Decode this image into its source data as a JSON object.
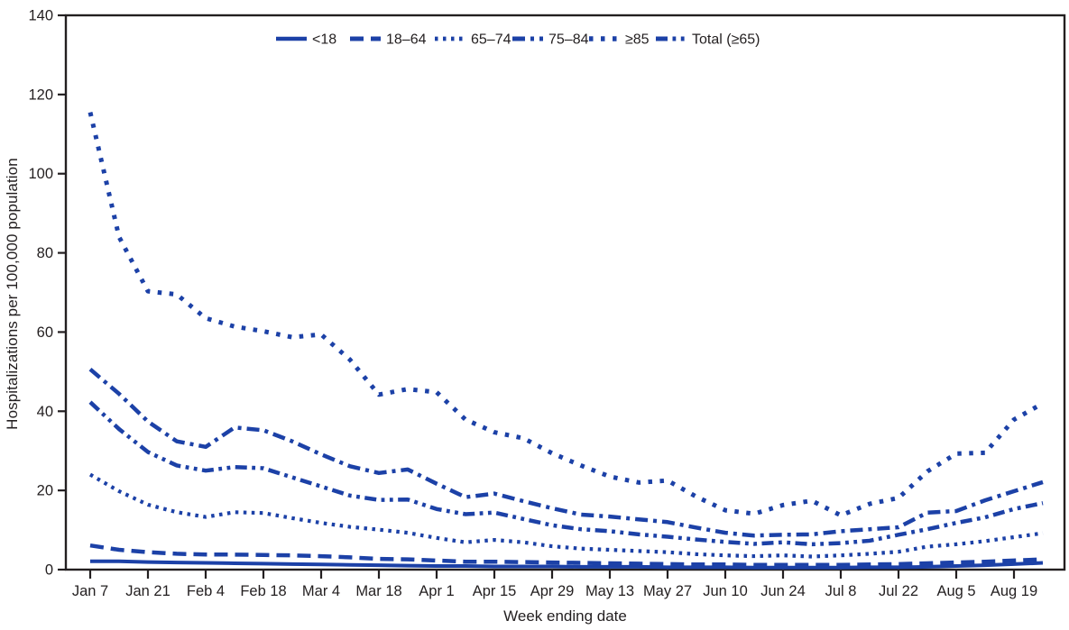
{
  "figure": {
    "y_axis_label": "Hospitalizations per 100,000 population",
    "x_axis_label": "Week ending date",
    "line_color": "#1c41a7",
    "axis_color": "#231f20"
  },
  "chart_data": {
    "type": "line",
    "title": "",
    "xlabel": "Week ending date",
    "ylabel": "Hospitalizations per 100,000 population",
    "ylim": [
      0,
      140
    ],
    "y_ticks": [
      0,
      20,
      40,
      60,
      80,
      100,
      120,
      140
    ],
    "grid": false,
    "legend_position": "top-center",
    "x": [
      "Jan 7",
      "Jan 14",
      "Jan 21",
      "Jan 28",
      "Feb 4",
      "Feb 11",
      "Feb 18",
      "Feb 25",
      "Mar 4",
      "Mar 11",
      "Mar 18",
      "Mar 25",
      "Apr 1",
      "Apr 8",
      "Apr 15",
      "Apr 22",
      "Apr 29",
      "May 6",
      "May 13",
      "May 20",
      "May 27",
      "Jun 3",
      "Jun 10",
      "Jun 17",
      "Jun 24",
      "Jul 1",
      "Jul 8",
      "Jul 15",
      "Jul 22",
      "Jul 29",
      "Aug 5",
      "Aug 12",
      "Aug 19",
      "Aug 26"
    ],
    "x_tick_labels": [
      "Jan 7",
      "Jan 21",
      "Feb 4",
      "Feb 18",
      "Mar 4",
      "Mar 18",
      "Apr 1",
      "Apr 15",
      "Apr 29",
      "May 13",
      "May 27",
      "Jun 10",
      "Jun 24",
      "Jul 8",
      "Jul 22",
      "Aug 5",
      "Aug 19"
    ],
    "series": [
      {
        "name": "<18",
        "style": "solid",
        "values": [
          2.1,
          2.1,
          1.9,
          1.8,
          1.7,
          1.6,
          1.5,
          1.4,
          1.3,
          1.2,
          1.1,
          1.0,
          0.9,
          0.9,
          0.8,
          0.8,
          0.8,
          0.7,
          0.7,
          0.7,
          0.6,
          0.6,
          0.6,
          0.5,
          0.5,
          0.5,
          0.5,
          0.6,
          0.6,
          0.7,
          0.9,
          1.1,
          1.4,
          1.7
        ]
      },
      {
        "name": "18–64",
        "style": "dashed",
        "values": [
          6.1,
          5.0,
          4.4,
          4.0,
          3.8,
          3.8,
          3.7,
          3.6,
          3.4,
          3.1,
          2.7,
          2.6,
          2.3,
          2.0,
          2.0,
          1.9,
          1.8,
          1.7,
          1.6,
          1.5,
          1.4,
          1.3,
          1.3,
          1.2,
          1.2,
          1.2,
          1.2,
          1.3,
          1.4,
          1.6,
          1.8,
          2.0,
          2.3,
          2.6
        ]
      },
      {
        "name": "65–74",
        "style": "dotted",
        "values": [
          24.0,
          19.8,
          16.4,
          14.5,
          13.3,
          14.5,
          14.3,
          13.0,
          11.8,
          10.8,
          10.1,
          9.3,
          8.0,
          6.9,
          7.5,
          6.9,
          5.9,
          5.3,
          5.0,
          4.7,
          4.4,
          3.9,
          3.6,
          3.4,
          3.6,
          3.3,
          3.6,
          4.0,
          4.5,
          5.8,
          6.4,
          7.2,
          8.2,
          9.2
        ]
      },
      {
        "name": "75–84",
        "style": "dash-dot",
        "values": [
          50.6,
          44.4,
          37.4,
          32.4,
          31.0,
          35.9,
          35.2,
          32.4,
          29.1,
          26.1,
          24.4,
          25.3,
          21.7,
          18.3,
          19.2,
          17.3,
          15.5,
          13.9,
          13.4,
          12.7,
          12.0,
          10.6,
          9.3,
          8.6,
          8.8,
          8.9,
          9.7,
          10.2,
          10.7,
          14.4,
          14.8,
          17.5,
          19.8,
          22.1
        ]
      },
      {
        "name": "≥85",
        "style": "sparse-dotted",
        "values": [
          115.5,
          84.0,
          70.3,
          69.5,
          63.5,
          61.4,
          60.2,
          58.7,
          59.4,
          53.0,
          44.2,
          45.6,
          44.8,
          37.9,
          34.7,
          33.2,
          29.4,
          26.3,
          23.5,
          22.0,
          22.5,
          18.4,
          15.0,
          14.1,
          16.3,
          17.4,
          13.7,
          16.6,
          18.1,
          24.8,
          29.3,
          29.5,
          37.9,
          42.0
        ]
      },
      {
        "name": "Total (≥65)",
        "style": "dash-dot-dot",
        "values": [
          42.3,
          35.5,
          29.7,
          26.3,
          25.0,
          25.9,
          25.6,
          23.3,
          21.0,
          18.7,
          17.6,
          17.7,
          15.3,
          14.0,
          14.4,
          12.8,
          11.2,
          10.2,
          9.7,
          8.9,
          8.3,
          7.6,
          7.0,
          6.5,
          6.9,
          6.4,
          6.7,
          7.3,
          8.8,
          10.2,
          11.8,
          13.2,
          15.3,
          16.8
        ]
      }
    ]
  }
}
